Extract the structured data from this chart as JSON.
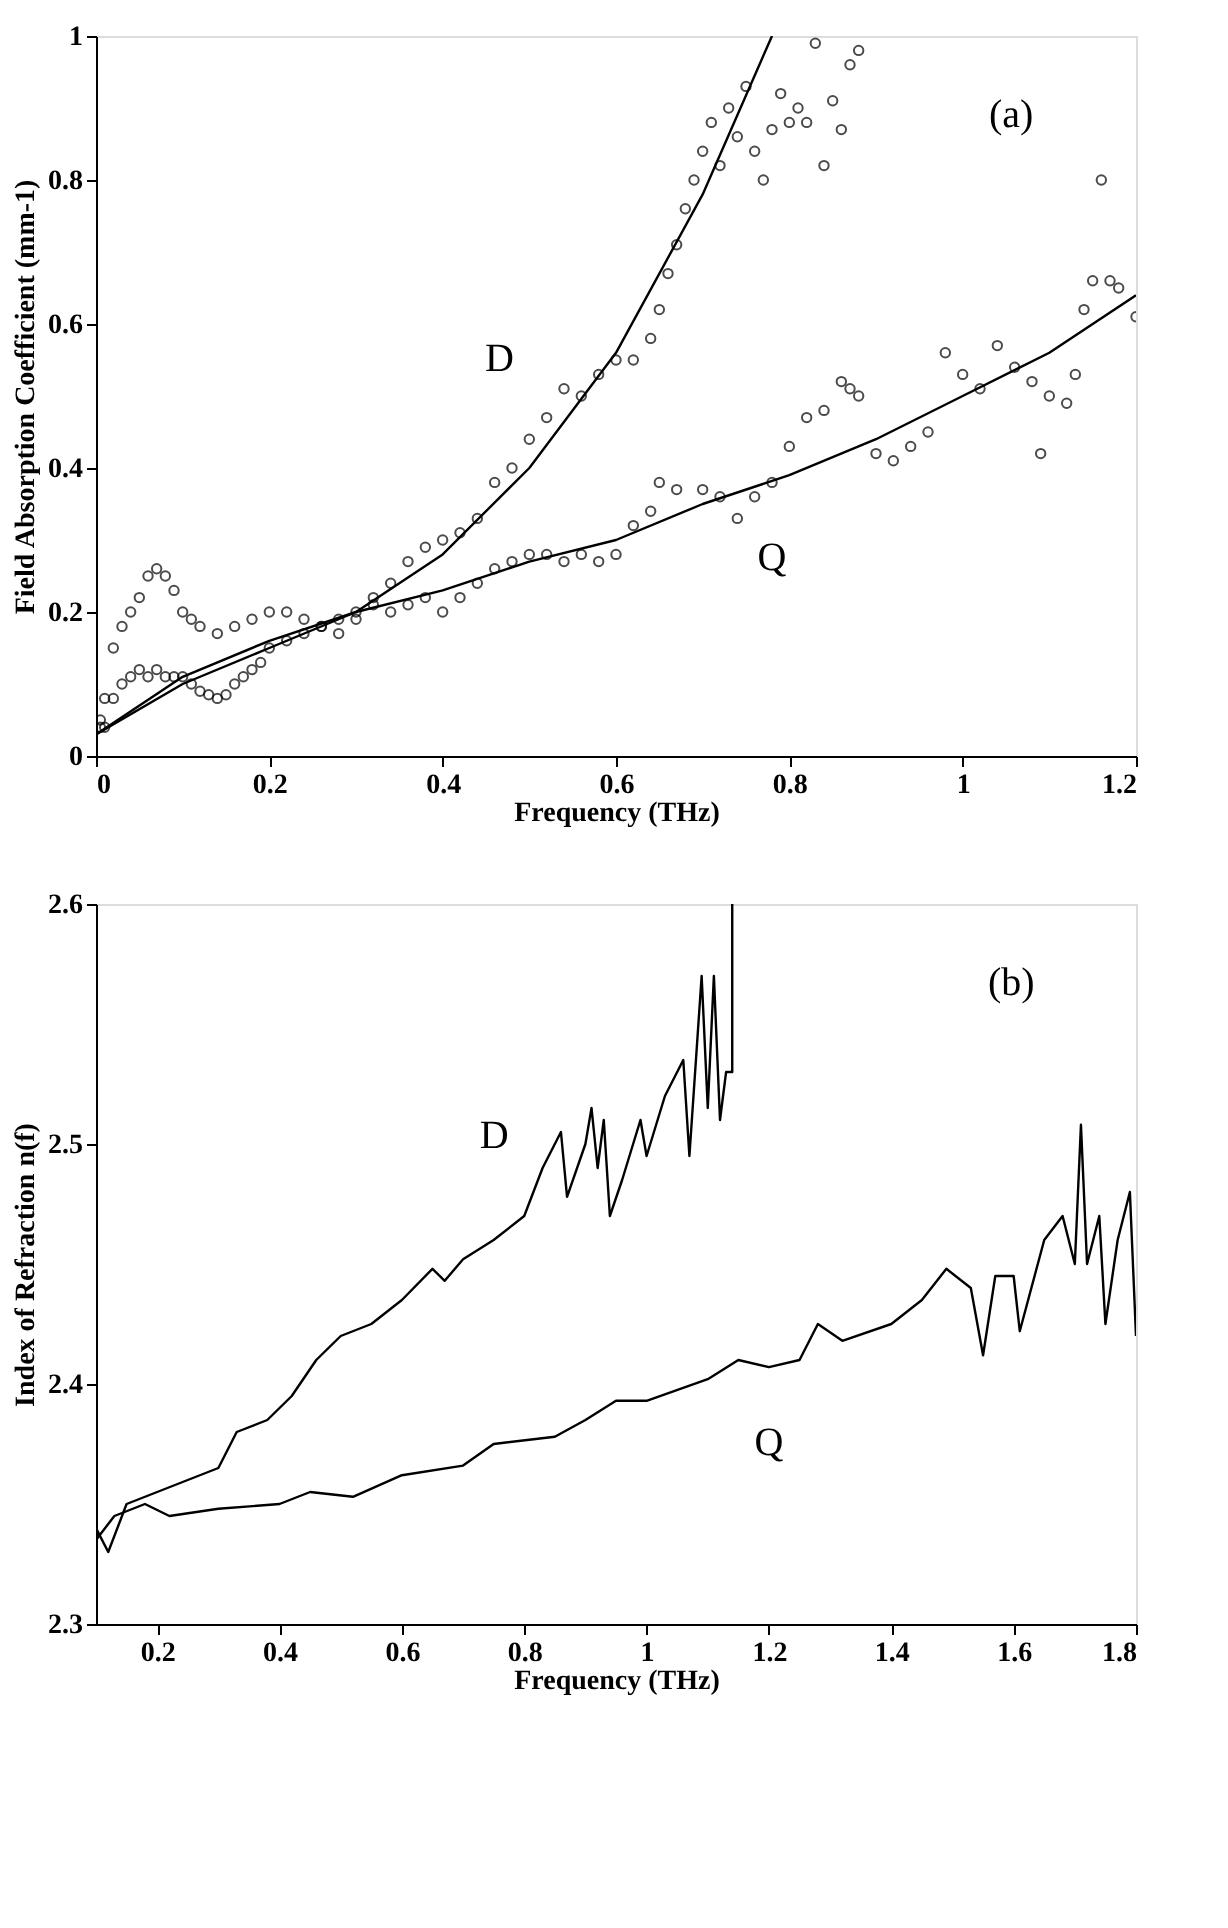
{
  "chart_data": [
    {
      "type": "scatter",
      "xlabel": "Frequency (THz)",
      "ylabel": "Field Absorption Coefficient (mm-1)",
      "xlim": [
        0,
        1.2
      ],
      "ylim": [
        0,
        1
      ],
      "xticks": [
        0,
        0.2,
        0.4,
        0.6,
        0.8,
        1,
        1.2
      ],
      "yticks": [
        0,
        0.2,
        0.4,
        0.6,
        0.8,
        1
      ],
      "grid": false,
      "annotations": [
        "(a)"
      ],
      "series": [
        {
          "name": "D",
          "marker": "circle",
          "color": "#000000",
          "x": [
            0.005,
            0.01,
            0.02,
            0.03,
            0.04,
            0.05,
            0.06,
            0.07,
            0.08,
            0.09,
            0.1,
            0.11,
            0.12,
            0.13,
            0.14,
            0.15,
            0.16,
            0.17,
            0.18,
            0.19,
            0.2,
            0.22,
            0.24,
            0.26,
            0.28,
            0.3,
            0.32,
            0.34,
            0.36,
            0.38,
            0.4,
            0.42,
            0.44,
            0.46,
            0.48,
            0.5,
            0.52,
            0.54,
            0.56,
            0.58,
            0.6,
            0.62,
            0.64,
            0.65,
            0.66,
            0.67,
            0.68,
            0.69,
            0.7,
            0.71,
            0.72,
            0.73,
            0.74,
            0.75,
            0.76,
            0.77,
            0.78,
            0.79,
            0.8,
            0.81,
            0.82,
            0.83,
            0.84,
            0.85,
            0.86,
            0.87,
            0.88
          ],
          "values": [
            0.05,
            0.04,
            0.08,
            0.1,
            0.11,
            0.12,
            0.11,
            0.12,
            0.11,
            0.11,
            0.11,
            0.1,
            0.09,
            0.085,
            0.08,
            0.085,
            0.1,
            0.11,
            0.12,
            0.13,
            0.15,
            0.16,
            0.17,
            0.18,
            0.17,
            0.19,
            0.22,
            0.24,
            0.27,
            0.29,
            0.3,
            0.31,
            0.33,
            0.38,
            0.4,
            0.44,
            0.47,
            0.51,
            0.5,
            0.53,
            0.55,
            0.55,
            0.58,
            0.62,
            0.67,
            0.71,
            0.76,
            0.8,
            0.84,
            0.88,
            0.82,
            0.9,
            0.86,
            0.93,
            0.84,
            0.8,
            0.87,
            0.92,
            0.88,
            0.9,
            0.88,
            0.99,
            0.82,
            0.91,
            0.87,
            0.96,
            0.98
          ]
        },
        {
          "name": "Q",
          "marker": "circle",
          "color": "#000000",
          "x": [
            0.005,
            0.01,
            0.02,
            0.03,
            0.04,
            0.05,
            0.06,
            0.07,
            0.08,
            0.09,
            0.1,
            0.11,
            0.12,
            0.14,
            0.16,
            0.18,
            0.2,
            0.22,
            0.24,
            0.26,
            0.28,
            0.3,
            0.32,
            0.34,
            0.36,
            0.38,
            0.4,
            0.42,
            0.44,
            0.46,
            0.48,
            0.5,
            0.52,
            0.54,
            0.56,
            0.58,
            0.6,
            0.62,
            0.64,
            0.65,
            0.67,
            0.7,
            0.72,
            0.74,
            0.76,
            0.78,
            0.8,
            0.82,
            0.84,
            0.86,
            0.87,
            0.88,
            0.9,
            0.92,
            0.94,
            0.96,
            0.98,
            1.0,
            1.02,
            1.04,
            1.06,
            1.08,
            1.09,
            1.1,
            1.12,
            1.13,
            1.14,
            1.15,
            1.16,
            1.17,
            1.18,
            1.2
          ],
          "values": [
            0.04,
            0.08,
            0.15,
            0.18,
            0.2,
            0.22,
            0.25,
            0.26,
            0.25,
            0.23,
            0.2,
            0.19,
            0.18,
            0.17,
            0.18,
            0.19,
            0.2,
            0.2,
            0.19,
            0.18,
            0.19,
            0.2,
            0.21,
            0.2,
            0.21,
            0.22,
            0.2,
            0.22,
            0.24,
            0.26,
            0.27,
            0.28,
            0.28,
            0.27,
            0.28,
            0.27,
            0.28,
            0.32,
            0.34,
            0.38,
            0.37,
            0.37,
            0.36,
            0.33,
            0.36,
            0.38,
            0.43,
            0.47,
            0.48,
            0.52,
            0.51,
            0.5,
            0.42,
            0.41,
            0.43,
            0.45,
            0.56,
            0.53,
            0.51,
            0.57,
            0.54,
            0.52,
            0.42,
            0.5,
            0.49,
            0.53,
            0.62,
            0.66,
            0.8,
            0.66,
            0.65,
            0.61
          ]
        },
        {
          "type": "line",
          "color": "#000000",
          "x": [
            0,
            0.1,
            0.2,
            0.3,
            0.4,
            0.5,
            0.6,
            0.7,
            0.78
          ],
          "values": [
            0.03,
            0.1,
            0.15,
            0.2,
            0.28,
            0.4,
            0.56,
            0.78,
            1.0
          ]
        },
        {
          "type": "line",
          "color": "#000000",
          "x": [
            0,
            0.1,
            0.2,
            0.3,
            0.4,
            0.5,
            0.6,
            0.7,
            0.8,
            0.9,
            1.0,
            1.1,
            1.2
          ],
          "values": [
            0.03,
            0.11,
            0.16,
            0.2,
            0.23,
            0.27,
            0.3,
            0.35,
            0.39,
            0.44,
            0.5,
            0.56,
            0.64
          ]
        }
      ]
    },
    {
      "type": "line",
      "xlabel": "Frequency (THz)",
      "ylabel": "Index of Refraction n(f)",
      "xlim": [
        0.1,
        1.8
      ],
      "ylim": [
        2.3,
        2.6
      ],
      "xticks": [
        0.2,
        0.4,
        0.6,
        0.8,
        1,
        1.2,
        1.4,
        1.6,
        1.8
      ],
      "yticks": [
        2.3,
        2.4,
        2.5,
        2.6
      ],
      "grid": false,
      "annotations": [
        "(b)"
      ],
      "series": [
        {
          "name": "D",
          "color": "#000000",
          "x": [
            0.1,
            0.12,
            0.15,
            0.2,
            0.25,
            0.3,
            0.33,
            0.38,
            0.42,
            0.46,
            0.5,
            0.55,
            0.6,
            0.65,
            0.67,
            0.7,
            0.75,
            0.8,
            0.83,
            0.86,
            0.87,
            0.9,
            0.91,
            0.92,
            0.93,
            0.94,
            0.96,
            0.99,
            1.0,
            1.03,
            1.06,
            1.07,
            1.09,
            1.1,
            1.11,
            1.12,
            1.13,
            1.14,
            1.14
          ],
          "values": [
            2.34,
            2.33,
            2.35,
            2.355,
            2.36,
            2.365,
            2.38,
            2.385,
            2.395,
            2.41,
            2.42,
            2.425,
            2.435,
            2.448,
            2.443,
            2.452,
            2.46,
            2.47,
            2.49,
            2.505,
            2.478,
            2.5,
            2.515,
            2.49,
            2.51,
            2.47,
            2.485,
            2.51,
            2.495,
            2.52,
            2.535,
            2.495,
            2.57,
            2.515,
            2.57,
            2.51,
            2.53,
            2.53,
            2.6
          ]
        },
        {
          "name": "Q",
          "color": "#000000",
          "x": [
            0.1,
            0.13,
            0.18,
            0.22,
            0.3,
            0.4,
            0.45,
            0.52,
            0.6,
            0.7,
            0.75,
            0.85,
            0.9,
            0.95,
            1.0,
            1.1,
            1.15,
            1.2,
            1.25,
            1.28,
            1.32,
            1.4,
            1.45,
            1.49,
            1.53,
            1.55,
            1.57,
            1.6,
            1.61,
            1.65,
            1.68,
            1.7,
            1.71,
            1.72,
            1.74,
            1.75,
            1.77,
            1.79,
            1.8
          ],
          "values": [
            2.335,
            2.345,
            2.35,
            2.345,
            2.348,
            2.35,
            2.355,
            2.353,
            2.362,
            2.366,
            2.375,
            2.378,
            2.385,
            2.393,
            2.393,
            2.402,
            2.41,
            2.407,
            2.41,
            2.425,
            2.418,
            2.425,
            2.435,
            2.448,
            2.44,
            2.412,
            2.445,
            2.445,
            2.422,
            2.46,
            2.47,
            2.45,
            2.508,
            2.45,
            2.47,
            2.425,
            2.46,
            2.48,
            2.42
          ]
        }
      ]
    }
  ]
}
